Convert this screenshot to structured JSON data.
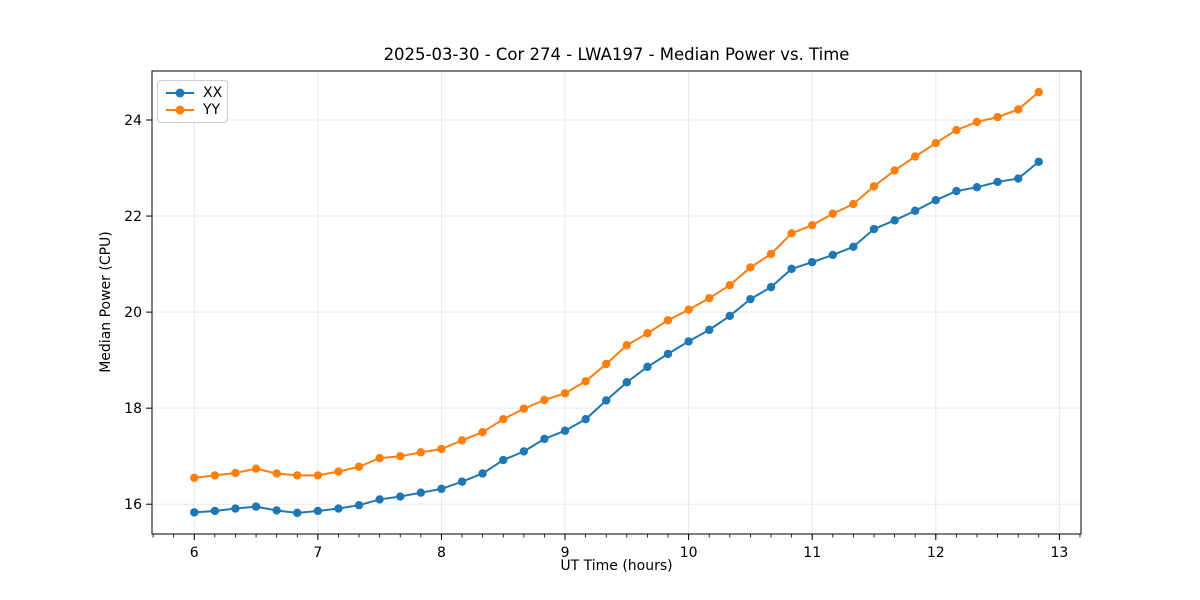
{
  "chart_data": {
    "type": "line",
    "title": "2025-03-30 - Cor 274 - LWA197 - Median Power vs. Time",
    "xlabel": "UT Time (hours)",
    "ylabel": "Median Power (CPU)",
    "xlim": [
      5.658,
      13.175
    ],
    "ylim": [
      15.38,
      25.02
    ],
    "x_ticks": [
      6,
      7,
      8,
      9,
      10,
      11,
      12,
      13
    ],
    "y_ticks": [
      16,
      18,
      20,
      22,
      24
    ],
    "x_minor_step": 0.1666667,
    "grid": true,
    "grid_color": "#e8e8e8",
    "spine_color": "#000000",
    "legend_position": "upper-left",
    "x": [
      6.0,
      6.167,
      6.333,
      6.5,
      6.667,
      6.833,
      7.0,
      7.167,
      7.333,
      7.5,
      7.667,
      7.833,
      8.0,
      8.167,
      8.333,
      8.5,
      8.667,
      8.833,
      9.0,
      9.167,
      9.333,
      9.5,
      9.667,
      9.833,
      10.0,
      10.167,
      10.333,
      10.5,
      10.667,
      10.833,
      11.0,
      11.167,
      11.333,
      11.5,
      11.667,
      11.833,
      12.0,
      12.167,
      12.333,
      12.5,
      12.667,
      12.833
    ],
    "series": [
      {
        "name": "XX",
        "color": "#1f77b4",
        "marker": "circle",
        "values": [
          15.83,
          15.86,
          15.91,
          15.95,
          15.87,
          15.82,
          15.86,
          15.91,
          15.98,
          16.1,
          16.16,
          16.24,
          16.32,
          16.47,
          16.64,
          16.92,
          17.1,
          17.36,
          17.53,
          17.77,
          18.16,
          18.54,
          18.86,
          19.13,
          19.39,
          19.63,
          19.92,
          20.27,
          20.52,
          20.9,
          21.04,
          21.19,
          21.36,
          21.73,
          21.91,
          22.11,
          22.33,
          22.52,
          22.6,
          22.71,
          22.78,
          23.13
        ]
      },
      {
        "name": "YY",
        "color": "#ff7f0e",
        "marker": "circle",
        "values": [
          16.55,
          16.6,
          16.65,
          16.74,
          16.64,
          16.6,
          16.6,
          16.68,
          16.78,
          16.96,
          17.0,
          17.08,
          17.15,
          17.33,
          17.5,
          17.77,
          17.99,
          18.17,
          18.31,
          18.56,
          18.92,
          19.31,
          19.56,
          19.83,
          20.05,
          20.29,
          20.56,
          20.93,
          21.21,
          21.64,
          21.81,
          22.05,
          22.25,
          22.62,
          22.95,
          23.24,
          23.52,
          23.79,
          23.96,
          24.06,
          24.22,
          24.58
        ]
      }
    ]
  }
}
